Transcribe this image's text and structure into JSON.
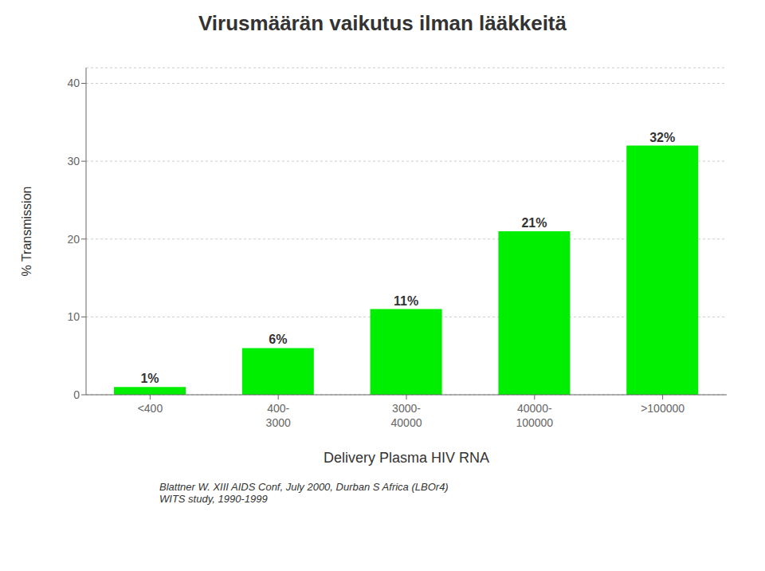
{
  "chart_data": {
    "type": "bar",
    "title": "Virusmäärän vaikutus ilman lääkkeitä",
    "categories": [
      "<400",
      "400-\n3000",
      "3000-\n40000",
      "40000-\n100000",
      ">100000"
    ],
    "values": [
      1,
      6,
      11,
      21,
      32
    ],
    "value_labels": [
      "1%",
      "6%",
      "11%",
      "21%",
      "32%"
    ],
    "data_labels": true,
    "color": "#00EE00",
    "xlabel": "Delivery Plasma HIV RNA",
    "ylabel": "% Transmission",
    "ylim": [
      0,
      42
    ],
    "yticks": [
      0,
      10,
      20,
      30,
      40
    ],
    "grid": true,
    "annotations": [
      "Blattner W.  XIII AIDS Conf, July 2000, Durban S Africa (LBOr4)\nWITS study, 1990-1999"
    ]
  }
}
